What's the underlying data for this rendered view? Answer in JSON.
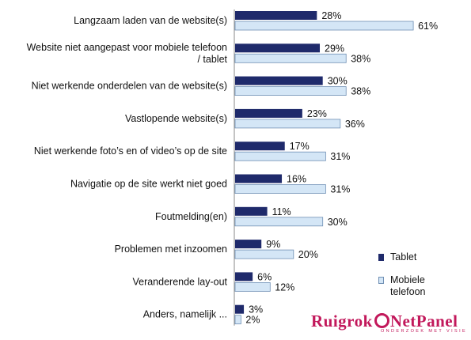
{
  "chart_data": {
    "type": "bar",
    "orientation": "horizontal",
    "categories": [
      "Langzaam laden van de website(s)",
      "Website niet aangepast voor mobiele telefoon / tablet",
      "Niet werkende onderdelen van de website(s)",
      "Vastlopende website(s)",
      "Niet werkende foto’s en of video’s op de site",
      "Navigatie op de site werkt niet goed",
      "Foutmelding(en)",
      "Problemen met inzoomen",
      "Veranderende lay-out",
      "Anders, namelijk ..."
    ],
    "series": [
      {
        "name": "Tablet",
        "values": [
          28,
          29,
          30,
          23,
          17,
          16,
          11,
          9,
          6,
          3
        ]
      },
      {
        "name": "Mobiele telefoon",
        "values": [
          61,
          38,
          38,
          36,
          31,
          31,
          30,
          20,
          12,
          2
        ]
      }
    ],
    "value_suffix": "%",
    "legend_position": "right-bottom",
    "grid": false
  },
  "colors": {
    "tablet": "#1f2a6b",
    "mobiel": "#d4e6f6",
    "mobiel_border": "#6f8fb4",
    "logo": "#c2185b"
  },
  "legend": {
    "items": [
      {
        "label": "Tablet"
      },
      {
        "label": "Mobiele telefoon"
      }
    ]
  },
  "logo": {
    "part1": "Ruigrok",
    "part2": "NetPanel",
    "tagline": "ONDERZOEK MET VISIE"
  }
}
